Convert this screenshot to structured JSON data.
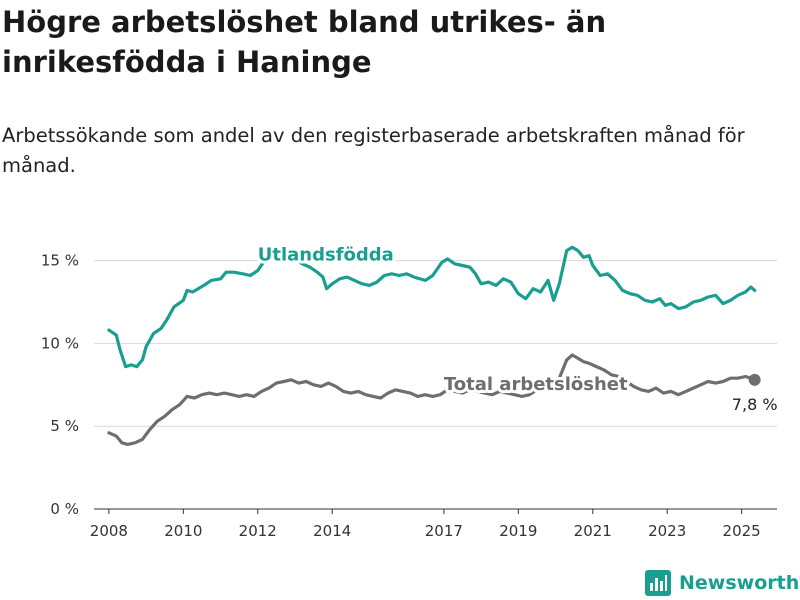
{
  "title": "Högre arbetslöshet bland utrikes- än inrikesfödda i Haninge",
  "subtitle": "Arbetssökande som andel av den registerbaserade arbetskraften månad för månad.",
  "brand": "Newsworthy",
  "colors": {
    "foreign_born": "#1a9e8f",
    "total": "#6e6e6e",
    "grid": "#d9d9d9",
    "axis": "#333333"
  },
  "chart_data": {
    "type": "line",
    "title": "Högre arbetslöshet bland utrikes- än inrikesfödda i Haninge",
    "subtitle": "Arbetssökande som andel av den registerbaserade arbetskraften månad för månad.",
    "xlabel": "",
    "ylabel": "",
    "x_range": [
      2007.6,
      2025.95
    ],
    "ylim": [
      0,
      16
    ],
    "x_ticks": [
      {
        "value": 2008,
        "label": "2008"
      },
      {
        "value": 2010,
        "label": "2010"
      },
      {
        "value": 2012,
        "label": "2012"
      },
      {
        "value": 2014,
        "label": "2014"
      },
      {
        "value": 2017,
        "label": "2017"
      },
      {
        "value": 2019,
        "label": "2019"
      },
      {
        "value": 2021,
        "label": "2021"
      },
      {
        "value": 2023,
        "label": "2023"
      },
      {
        "value": 2025,
        "label": "2025"
      }
    ],
    "y_ticks": [
      {
        "value": 0,
        "label": "0 %"
      },
      {
        "value": 5,
        "label": "5 %"
      },
      {
        "value": 10,
        "label": "10 %"
      },
      {
        "value": 15,
        "label": "15 %"
      }
    ],
    "grid": true,
    "legend": "direct labels",
    "end_label": "7,8 %",
    "series": [
      {
        "name": "Utlandsfödda",
        "color": "#1a9e8f",
        "points": [
          [
            2008.0,
            10.8
          ],
          [
            2008.2,
            10.5
          ],
          [
            2008.3,
            9.6
          ],
          [
            2008.45,
            8.6
          ],
          [
            2008.6,
            8.7
          ],
          [
            2008.75,
            8.6
          ],
          [
            2008.9,
            9.0
          ],
          [
            2009.0,
            9.8
          ],
          [
            2009.2,
            10.6
          ],
          [
            2009.4,
            10.9
          ],
          [
            2009.55,
            11.4
          ],
          [
            2009.75,
            12.2
          ],
          [
            2010.0,
            12.6
          ],
          [
            2010.1,
            13.2
          ],
          [
            2010.25,
            13.1
          ],
          [
            2010.4,
            13.3
          ],
          [
            2010.55,
            13.5
          ],
          [
            2010.75,
            13.8
          ],
          [
            2011.0,
            13.9
          ],
          [
            2011.15,
            14.3
          ],
          [
            2011.35,
            14.3
          ],
          [
            2011.6,
            14.2
          ],
          [
            2011.8,
            14.1
          ],
          [
            2012.0,
            14.4
          ],
          [
            2012.15,
            14.9
          ],
          [
            2012.35,
            15.3
          ],
          [
            2012.55,
            15.4
          ],
          [
            2012.75,
            15.1
          ],
          [
            2013.0,
            15.1
          ],
          [
            2013.2,
            14.8
          ],
          [
            2013.4,
            14.6
          ],
          [
            2013.6,
            14.3
          ],
          [
            2013.75,
            14.0
          ],
          [
            2013.85,
            13.3
          ],
          [
            2014.0,
            13.6
          ],
          [
            2014.2,
            13.9
          ],
          [
            2014.4,
            14.0
          ],
          [
            2014.6,
            13.8
          ],
          [
            2014.8,
            13.6
          ],
          [
            2015.0,
            13.5
          ],
          [
            2015.2,
            13.7
          ],
          [
            2015.4,
            14.1
          ],
          [
            2015.6,
            14.2
          ],
          [
            2015.8,
            14.1
          ],
          [
            2016.0,
            14.2
          ],
          [
            2016.2,
            14.0
          ],
          [
            2016.5,
            13.8
          ],
          [
            2016.7,
            14.1
          ],
          [
            2016.95,
            14.9
          ],
          [
            2017.1,
            15.1
          ],
          [
            2017.3,
            14.8
          ],
          [
            2017.5,
            14.7
          ],
          [
            2017.7,
            14.6
          ],
          [
            2017.85,
            14.2
          ],
          [
            2018.0,
            13.6
          ],
          [
            2018.2,
            13.7
          ],
          [
            2018.4,
            13.5
          ],
          [
            2018.6,
            13.9
          ],
          [
            2018.8,
            13.7
          ],
          [
            2019.0,
            13.0
          ],
          [
            2019.2,
            12.7
          ],
          [
            2019.4,
            13.3
          ],
          [
            2019.6,
            13.1
          ],
          [
            2019.8,
            13.8
          ],
          [
            2019.95,
            12.6
          ],
          [
            2020.1,
            13.6
          ],
          [
            2020.3,
            15.6
          ],
          [
            2020.45,
            15.8
          ],
          [
            2020.6,
            15.6
          ],
          [
            2020.75,
            15.2
          ],
          [
            2020.9,
            15.3
          ],
          [
            2021.0,
            14.7
          ],
          [
            2021.2,
            14.1
          ],
          [
            2021.4,
            14.2
          ],
          [
            2021.6,
            13.8
          ],
          [
            2021.8,
            13.2
          ],
          [
            2022.0,
            13.0
          ],
          [
            2022.2,
            12.9
          ],
          [
            2022.4,
            12.6
          ],
          [
            2022.6,
            12.5
          ],
          [
            2022.8,
            12.7
          ],
          [
            2022.95,
            12.3
          ],
          [
            2023.1,
            12.4
          ],
          [
            2023.3,
            12.1
          ],
          [
            2023.5,
            12.2
          ],
          [
            2023.7,
            12.5
          ],
          [
            2023.9,
            12.6
          ],
          [
            2024.1,
            12.8
          ],
          [
            2024.3,
            12.9
          ],
          [
            2024.5,
            12.4
          ],
          [
            2024.7,
            12.6
          ],
          [
            2024.9,
            12.9
          ],
          [
            2025.1,
            13.1
          ],
          [
            2025.25,
            13.4
          ],
          [
            2025.35,
            13.2
          ]
        ]
      },
      {
        "name": "Total arbetslöshet",
        "color": "#6e6e6e",
        "points": [
          [
            2008.0,
            4.6
          ],
          [
            2008.2,
            4.4
          ],
          [
            2008.35,
            4.0
          ],
          [
            2008.5,
            3.9
          ],
          [
            2008.7,
            4.0
          ],
          [
            2008.9,
            4.2
          ],
          [
            2009.1,
            4.8
          ],
          [
            2009.3,
            5.3
          ],
          [
            2009.5,
            5.6
          ],
          [
            2009.7,
            6.0
          ],
          [
            2009.9,
            6.3
          ],
          [
            2010.1,
            6.8
          ],
          [
            2010.3,
            6.7
          ],
          [
            2010.5,
            6.9
          ],
          [
            2010.7,
            7.0
          ],
          [
            2010.9,
            6.9
          ],
          [
            2011.1,
            7.0
          ],
          [
            2011.3,
            6.9
          ],
          [
            2011.5,
            6.8
          ],
          [
            2011.7,
            6.9
          ],
          [
            2011.9,
            6.8
          ],
          [
            2012.1,
            7.1
          ],
          [
            2012.3,
            7.3
          ],
          [
            2012.5,
            7.6
          ],
          [
            2012.7,
            7.7
          ],
          [
            2012.9,
            7.8
          ],
          [
            2013.1,
            7.6
          ],
          [
            2013.3,
            7.7
          ],
          [
            2013.5,
            7.5
          ],
          [
            2013.7,
            7.4
          ],
          [
            2013.9,
            7.6
          ],
          [
            2014.1,
            7.4
          ],
          [
            2014.3,
            7.1
          ],
          [
            2014.5,
            7.0
          ],
          [
            2014.7,
            7.1
          ],
          [
            2014.9,
            6.9
          ],
          [
            2015.1,
            6.8
          ],
          [
            2015.3,
            6.7
          ],
          [
            2015.5,
            7.0
          ],
          [
            2015.7,
            7.2
          ],
          [
            2015.9,
            7.1
          ],
          [
            2016.1,
            7.0
          ],
          [
            2016.3,
            6.8
          ],
          [
            2016.5,
            6.9
          ],
          [
            2016.7,
            6.8
          ],
          [
            2016.9,
            6.9
          ],
          [
            2017.1,
            7.2
          ],
          [
            2017.3,
            7.1
          ],
          [
            2017.5,
            7.0
          ],
          [
            2017.7,
            7.2
          ],
          [
            2017.9,
            7.1
          ],
          [
            2018.1,
            7.0
          ],
          [
            2018.3,
            6.9
          ],
          [
            2018.5,
            7.1
          ],
          [
            2018.7,
            7.0
          ],
          [
            2018.9,
            6.9
          ],
          [
            2019.1,
            6.8
          ],
          [
            2019.3,
            6.9
          ],
          [
            2019.5,
            7.2
          ],
          [
            2019.7,
            7.4
          ],
          [
            2019.9,
            7.6
          ],
          [
            2020.1,
            7.9
          ],
          [
            2020.3,
            9.0
          ],
          [
            2020.45,
            9.3
          ],
          [
            2020.6,
            9.1
          ],
          [
            2020.75,
            8.9
          ],
          [
            2020.9,
            8.8
          ],
          [
            2021.1,
            8.6
          ],
          [
            2021.3,
            8.4
          ],
          [
            2021.5,
            8.1
          ],
          [
            2021.7,
            8.0
          ],
          [
            2021.9,
            7.7
          ],
          [
            2022.1,
            7.4
          ],
          [
            2022.3,
            7.2
          ],
          [
            2022.5,
            7.1
          ],
          [
            2022.7,
            7.3
          ],
          [
            2022.9,
            7.0
          ],
          [
            2023.1,
            7.1
          ],
          [
            2023.3,
            6.9
          ],
          [
            2023.5,
            7.1
          ],
          [
            2023.7,
            7.3
          ],
          [
            2023.9,
            7.5
          ],
          [
            2024.1,
            7.7
          ],
          [
            2024.3,
            7.6
          ],
          [
            2024.5,
            7.7
          ],
          [
            2024.7,
            7.9
          ],
          [
            2024.9,
            7.9
          ],
          [
            2025.1,
            8.0
          ],
          [
            2025.25,
            7.9
          ],
          [
            2025.35,
            7.8
          ]
        ]
      }
    ]
  }
}
